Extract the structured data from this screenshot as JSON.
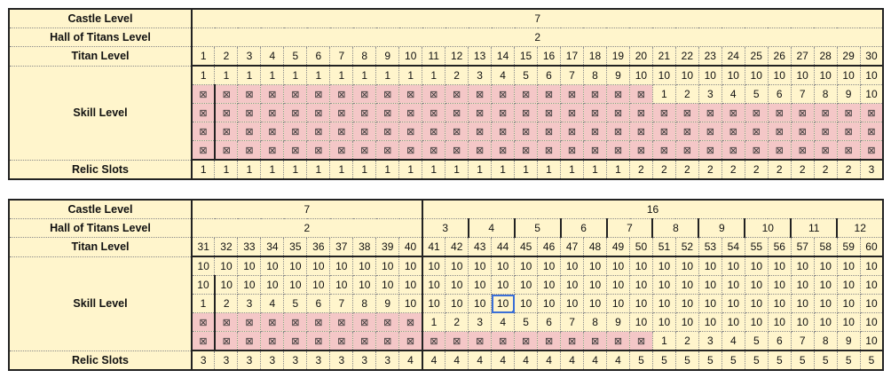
{
  "colors": {
    "cell_bg": "#fff5cc",
    "locked_bg": "#f4c7c7",
    "selection": "#3b6fd6"
  },
  "locked_symbol": "⊠",
  "tables": [
    {
      "labels": {
        "castle": "Castle Level",
        "hall": "Hall of Titans Level",
        "titan": "Titan Level",
        "skill": "Skill Level",
        "relic": "Relic Slots"
      },
      "castle_groups": [
        {
          "label": "7",
          "span": 30
        }
      ],
      "hall_groups": [
        {
          "label": "2",
          "span": 30
        }
      ],
      "titan_levels": [
        "1",
        "2",
        "3",
        "4",
        "5",
        "6",
        "7",
        "8",
        "9",
        "10",
        "11",
        "12",
        "13",
        "14",
        "15",
        "16",
        "17",
        "18",
        "19",
        "20",
        "21",
        "22",
        "23",
        "24",
        "25",
        "26",
        "27",
        "28",
        "29",
        "30"
      ],
      "skill_rows": [
        [
          "1",
          "1",
          "1",
          "1",
          "1",
          "1",
          "1",
          "1",
          "1",
          "1",
          "1",
          "2",
          "3",
          "4",
          "5",
          "6",
          "7",
          "8",
          "9",
          "10",
          "10",
          "10",
          "10",
          "10",
          "10",
          "10",
          "10",
          "10",
          "10",
          "10"
        ],
        [
          "x",
          "x",
          "x",
          "x",
          "x",
          "x",
          "x",
          "x",
          "x",
          "x",
          "x",
          "x",
          "x",
          "x",
          "x",
          "x",
          "x",
          "x",
          "x",
          "x",
          "1",
          "2",
          "3",
          "4",
          "5",
          "6",
          "7",
          "8",
          "9",
          "10"
        ],
        [
          "x",
          "x",
          "x",
          "x",
          "x",
          "x",
          "x",
          "x",
          "x",
          "x",
          "x",
          "x",
          "x",
          "x",
          "x",
          "x",
          "x",
          "x",
          "x",
          "x",
          "x",
          "x",
          "x",
          "x",
          "x",
          "x",
          "x",
          "x",
          "x",
          "x"
        ],
        [
          "x",
          "x",
          "x",
          "x",
          "x",
          "x",
          "x",
          "x",
          "x",
          "x",
          "x",
          "x",
          "x",
          "x",
          "x",
          "x",
          "x",
          "x",
          "x",
          "x",
          "x",
          "x",
          "x",
          "x",
          "x",
          "x",
          "x",
          "x",
          "x",
          "x"
        ],
        [
          "x",
          "x",
          "x",
          "x",
          "x",
          "x",
          "x",
          "x",
          "x",
          "x",
          "x",
          "x",
          "x",
          "x",
          "x",
          "x",
          "x",
          "x",
          "x",
          "x",
          "x",
          "x",
          "x",
          "x",
          "x",
          "x",
          "x",
          "x",
          "x",
          "x"
        ]
      ],
      "relic_slots": [
        "1",
        "1",
        "1",
        "1",
        "1",
        "1",
        "1",
        "1",
        "1",
        "1",
        "1",
        "1",
        "1",
        "1",
        "1",
        "1",
        "1",
        "1",
        "1",
        "2",
        "2",
        "2",
        "2",
        "2",
        "2",
        "2",
        "2",
        "2",
        "2",
        "3"
      ]
    },
    {
      "labels": {
        "castle": "Castle Level",
        "hall": "Hall of Titans Level",
        "titan": "Titan Level",
        "skill": "Skill Level",
        "relic": "Relic Slots"
      },
      "castle_groups": [
        {
          "label": "7",
          "span": 10
        },
        {
          "label": "16",
          "span": 20
        }
      ],
      "hall_groups": [
        {
          "label": "2",
          "span": 10
        },
        {
          "label": "3",
          "span": 2
        },
        {
          "label": "4",
          "span": 2
        },
        {
          "label": "5",
          "span": 2
        },
        {
          "label": "6",
          "span": 2
        },
        {
          "label": "7",
          "span": 2
        },
        {
          "label": "8",
          "span": 2
        },
        {
          "label": "9",
          "span": 2
        },
        {
          "label": "10",
          "span": 2
        },
        {
          "label": "11",
          "span": 2
        },
        {
          "label": "12",
          "span": 2
        }
      ],
      "titan_levels": [
        "31",
        "32",
        "33",
        "34",
        "35",
        "36",
        "37",
        "38",
        "39",
        "40",
        "41",
        "42",
        "43",
        "44",
        "45",
        "46",
        "47",
        "48",
        "49",
        "50",
        "51",
        "52",
        "53",
        "54",
        "55",
        "56",
        "57",
        "58",
        "59",
        "60"
      ],
      "skill_rows": [
        [
          "10",
          "10",
          "10",
          "10",
          "10",
          "10",
          "10",
          "10",
          "10",
          "10",
          "10",
          "10",
          "10",
          "10",
          "10",
          "10",
          "10",
          "10",
          "10",
          "10",
          "10",
          "10",
          "10",
          "10",
          "10",
          "10",
          "10",
          "10",
          "10",
          "10"
        ],
        [
          "10",
          "10",
          "10",
          "10",
          "10",
          "10",
          "10",
          "10",
          "10",
          "10",
          "10",
          "10",
          "10",
          "10",
          "10",
          "10",
          "10",
          "10",
          "10",
          "10",
          "10",
          "10",
          "10",
          "10",
          "10",
          "10",
          "10",
          "10",
          "10",
          "10"
        ],
        [
          "1",
          "2",
          "3",
          "4",
          "5",
          "6",
          "7",
          "8",
          "9",
          "10",
          "10",
          "10",
          "10",
          "10",
          "10",
          "10",
          "10",
          "10",
          "10",
          "10",
          "10",
          "10",
          "10",
          "10",
          "10",
          "10",
          "10",
          "10",
          "10",
          "10"
        ],
        [
          "x",
          "x",
          "x",
          "x",
          "x",
          "x",
          "x",
          "x",
          "x",
          "x",
          "1",
          "2",
          "3",
          "4",
          "5",
          "6",
          "7",
          "8",
          "9",
          "10",
          "10",
          "10",
          "10",
          "10",
          "10",
          "10",
          "10",
          "10",
          "10",
          "10"
        ],
        [
          "x",
          "x",
          "x",
          "x",
          "x",
          "x",
          "x",
          "x",
          "x",
          "x",
          "x",
          "x",
          "x",
          "x",
          "x",
          "x",
          "x",
          "x",
          "x",
          "x",
          "1",
          "2",
          "3",
          "4",
          "5",
          "6",
          "7",
          "8",
          "9",
          "10"
        ]
      ],
      "relic_slots": [
        "3",
        "3",
        "3",
        "3",
        "3",
        "3",
        "3",
        "3",
        "3",
        "4",
        "4",
        "4",
        "4",
        "4",
        "4",
        "4",
        "4",
        "4",
        "4",
        "5",
        "5",
        "5",
        "5",
        "5",
        "5",
        "5",
        "5",
        "5",
        "5",
        "5"
      ],
      "selected_cell": {
        "row": 2,
        "col": 13
      }
    }
  ]
}
